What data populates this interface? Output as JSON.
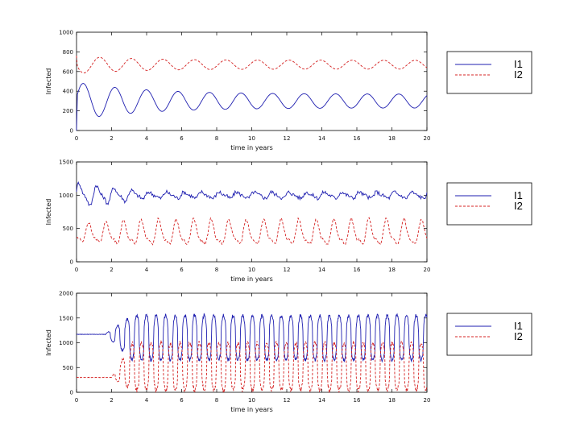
{
  "chart_data": [
    {
      "type": "line",
      "title": "",
      "xlabel": "time in years",
      "ylabel": "Infected",
      "xlim": [
        0,
        20
      ],
      "ylim": [
        0,
        1000
      ],
      "xticks": [
        "0",
        "2",
        "4",
        "6",
        "8",
        "10",
        "12",
        "14",
        "16",
        "18",
        "20"
      ],
      "yticks": [
        "0",
        "200",
        "400",
        "600",
        "800",
        "1000"
      ],
      "x_step": 0.05,
      "series": [
        {
          "name": "I1",
          "color": "#1f1fb0",
          "style": "solid",
          "model": {
            "kind": "damped",
            "base": 300,
            "amp0": 190,
            "amp1": 70,
            "decay": 0.25,
            "period": 1.8,
            "phase": 0.2,
            "x0": 0.0,
            "start": 0
          }
        },
        {
          "name": "I2",
          "color": "#d42020",
          "style": "dashed",
          "model": {
            "kind": "damped",
            "base": 670,
            "amp0": 90,
            "amp1": 45,
            "decay": 0.3,
            "period": 1.8,
            "phase": 3.2,
            "x0": 0.0,
            "start": 760
          }
        }
      ]
    },
    {
      "type": "line",
      "title": "",
      "xlabel": "time in years",
      "ylabel": "Infected",
      "xlim": [
        0,
        20
      ],
      "ylim": [
        0,
        1500
      ],
      "xticks": [
        "0",
        "2",
        "4",
        "6",
        "8",
        "10",
        "12",
        "14",
        "16",
        "18",
        "20"
      ],
      "yticks": [
        "0",
        "500",
        "1000",
        "1500"
      ],
      "x_step": 0.05,
      "series": [
        {
          "name": "I1",
          "color": "#1f1fb0",
          "style": "solid",
          "model": {
            "kind": "periodic",
            "base": 1000,
            "amp0": 160,
            "amp1": 40,
            "period": 1.0,
            "jitter": 60,
            "phase": 0.3,
            "x0": 0.0,
            "start": 0
          }
        },
        {
          "name": "I2",
          "color": "#d42020",
          "style": "dashed",
          "model": {
            "kind": "periodic",
            "base": 420,
            "amp0": 120,
            "amp1": 170,
            "period": 1.0,
            "jitter": 40,
            "phase": 3.4,
            "x0": 0.0,
            "start": 0
          }
        }
      ]
    },
    {
      "type": "line",
      "title": "",
      "xlabel": "time in years",
      "ylabel": "Infected",
      "xlim": [
        0,
        20
      ],
      "ylim": [
        0,
        2000
      ],
      "xticks": [
        "0",
        "2",
        "4",
        "6",
        "8",
        "10",
        "12",
        "14",
        "16",
        "18",
        "20"
      ],
      "yticks": [
        "0",
        "500",
        "1000",
        "1500",
        "2000"
      ],
      "x_step": 0.02,
      "series": [
        {
          "name": "I1",
          "color": "#1f1fb0",
          "style": "solid",
          "model": {
            "kind": "burst",
            "flat": 1170,
            "flat_until": 1.6,
            "ramp_until": 3.2,
            "hi": 1550,
            "lo": 650,
            "period": 0.55,
            "jitter": 70,
            "phase": 0.0,
            "x0": 0.0,
            "start": 0
          }
        },
        {
          "name": "I2",
          "color": "#d42020",
          "style": "dashed",
          "model": {
            "kind": "burst",
            "flat": 300,
            "flat_until": 2.0,
            "ramp_until": 3.2,
            "hi": 1000,
            "lo": 40,
            "period": 0.55,
            "jitter": 90,
            "phase": 3.1,
            "x0": 0.0,
            "start": 0
          }
        }
      ]
    }
  ],
  "legends": [
    {
      "entries": [
        "I1",
        "I2"
      ]
    },
    {
      "entries": [
        "I1",
        "I2"
      ]
    },
    {
      "entries": [
        "I1",
        "I2"
      ]
    }
  ]
}
